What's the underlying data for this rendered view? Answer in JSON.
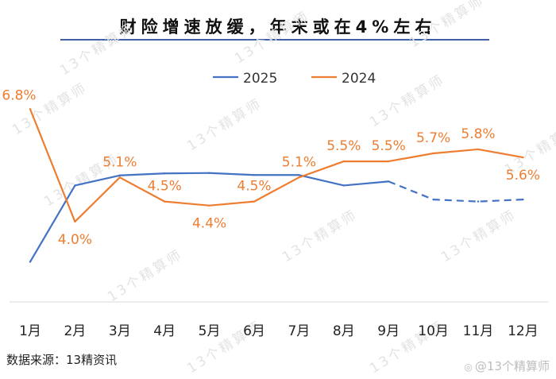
{
  "title": "财险增速放缓，年末或在4%左右",
  "source_note": "数据来源：13精资讯",
  "watermark": {
    "text": "13个精算师",
    "corner_text": "@13个精算师"
  },
  "colors": {
    "series_2025": "#4472c4",
    "series_2024": "#ed7d31",
    "title_rule": "#3f5fa8"
  },
  "chart_data": {
    "type": "line",
    "title": "财险增速放缓，年末或在4%左右",
    "xlabel": "",
    "ylabel": "",
    "ylim": [
      2,
      7.5
    ],
    "grid": false,
    "legend": "top-center",
    "categories": [
      "1月",
      "2月",
      "3月",
      "4月",
      "5月",
      "6月",
      "7月",
      "8月",
      "9月",
      "10月",
      "11月",
      "12月"
    ],
    "series": [
      {
        "name": "2025",
        "color": "#4472c4",
        "values": [
          3.0,
          4.9,
          5.15,
          5.2,
          5.21,
          5.16,
          5.16,
          4.9,
          5.0,
          4.55,
          4.5,
          4.55
        ],
        "projected_from_index": 9,
        "data_labels": false
      },
      {
        "name": "2024",
        "color": "#ed7d31",
        "values": [
          6.8,
          4.0,
          5.1,
          4.5,
          4.4,
          4.5,
          5.1,
          5.5,
          5.5,
          5.7,
          5.8,
          5.6
        ],
        "labels": [
          "6.8%",
          "4.0%",
          "5.1%",
          "4.5%",
          "4.4%",
          "4.5%",
          "5.1%",
          "5.5%",
          "5.5%",
          "5.7%",
          "5.8%",
          "5.6%"
        ],
        "data_labels": true
      }
    ]
  }
}
